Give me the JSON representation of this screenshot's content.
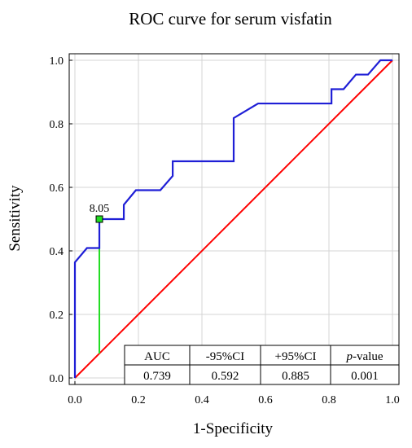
{
  "chart_data": {
    "type": "line",
    "title": "ROC curve for serum visfatin",
    "xlabel": "1-Specificity",
    "ylabel": "Sensitivity",
    "xlim": [
      0,
      1
    ],
    "ylim": [
      0,
      1
    ],
    "grid": true,
    "x_ticks": [
      "0.0",
      "0.2",
      "0.4",
      "0.6",
      "0.8",
      "1.0"
    ],
    "y_ticks": [
      "0.0",
      "0.2",
      "0.4",
      "0.6",
      "0.8",
      "1.0"
    ],
    "series": [
      {
        "color": "#1f1fd6",
        "points": [
          [
            0.0,
            0.0
          ],
          [
            0.0,
            0.364
          ],
          [
            0.038,
            0.409
          ],
          [
            0.077,
            0.409
          ],
          [
            0.077,
            0.5
          ],
          [
            0.154,
            0.5
          ],
          [
            0.154,
            0.545
          ],
          [
            0.192,
            0.591
          ],
          [
            0.269,
            0.591
          ],
          [
            0.308,
            0.636
          ],
          [
            0.308,
            0.682
          ],
          [
            0.5,
            0.682
          ],
          [
            0.5,
            0.818
          ],
          [
            0.577,
            0.864
          ],
          [
            0.808,
            0.864
          ],
          [
            0.808,
            0.909
          ],
          [
            0.846,
            0.909
          ],
          [
            0.885,
            0.955
          ],
          [
            0.923,
            0.955
          ],
          [
            0.962,
            1.0
          ],
          [
            1.0,
            1.0
          ]
        ]
      },
      {
        "color": "#ff0000",
        "points": [
          [
            0,
            0
          ],
          [
            1,
            1
          ]
        ]
      }
    ],
    "cutoff": {
      "label": "8.05",
      "x": 0.077,
      "y": 0.5,
      "y_from": 0.077,
      "color": "#22dd22"
    },
    "table": {
      "headers": [
        "AUC",
        "-95%CI",
        "+95%CI",
        "p-value"
      ],
      "values": [
        "0.739",
        "0.592",
        "0.885",
        "0.001"
      ]
    }
  }
}
